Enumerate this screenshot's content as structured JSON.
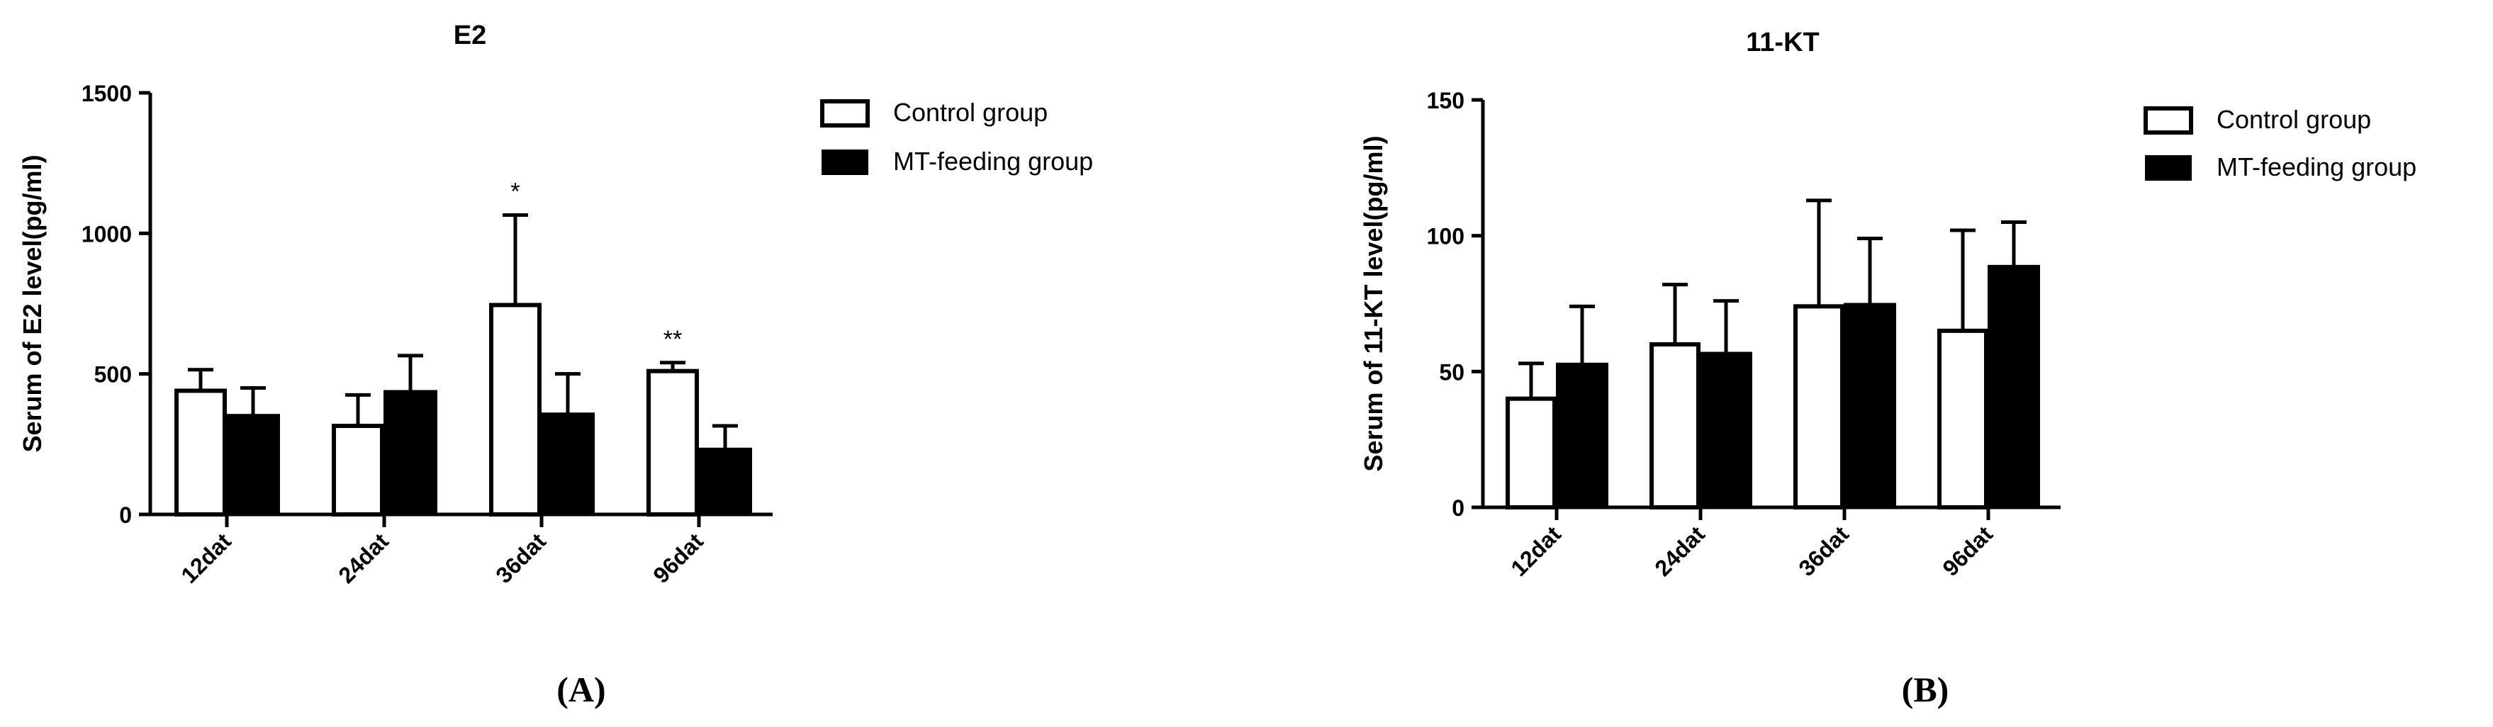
{
  "colors": {
    "control_fill": "#ffffff",
    "mt_fill": "#000000",
    "stroke": "#000000"
  },
  "legend": {
    "control": "Control group",
    "mt": "MT-feeding group"
  },
  "chart_data": [
    {
      "type": "bar",
      "panel": "(A)",
      "title": "E2",
      "ylabel": "Serum of E2 level(pg/ml)",
      "xlabel": "",
      "categories": [
        "12dat",
        "24dat",
        "36dat",
        "96dat"
      ],
      "ylim": [
        0,
        1500
      ],
      "yticks": [
        "0",
        "500",
        "1000",
        "1500"
      ],
      "series": [
        {
          "name": "Control group",
          "values": [
            440,
            315,
            745,
            510
          ],
          "error": [
            75,
            110,
            320,
            30
          ]
        },
        {
          "name": "MT-feeding group",
          "values": [
            355,
            440,
            360,
            235
          ],
          "error": [
            95,
            125,
            140,
            80
          ]
        }
      ],
      "annotations": [
        {
          "category": "36dat",
          "series": "Control group",
          "text": "*"
        },
        {
          "category": "96dat",
          "series": "Control group",
          "text": "**"
        }
      ],
      "legend_position": "top-right"
    },
    {
      "type": "bar",
      "panel": "(B)",
      "title": "11-KT",
      "ylabel": "Serum of 11-KT level(pg/ml)",
      "xlabel": "",
      "categories": [
        "12dat",
        "24dat",
        "36dat",
        "96dat"
      ],
      "ylim": [
        0,
        150
      ],
      "yticks": [
        "0",
        "50",
        "100",
        "150"
      ],
      "series": [
        {
          "name": "Control group",
          "values": [
            40,
            60,
            74,
            65
          ],
          "error": [
            13,
            22,
            39,
            37
          ]
        },
        {
          "name": "MT-feeding group",
          "values": [
            53,
            57,
            75,
            89
          ],
          "error": [
            21,
            19,
            24,
            16
          ]
        }
      ],
      "annotations": [],
      "legend_position": "top-right"
    }
  ]
}
